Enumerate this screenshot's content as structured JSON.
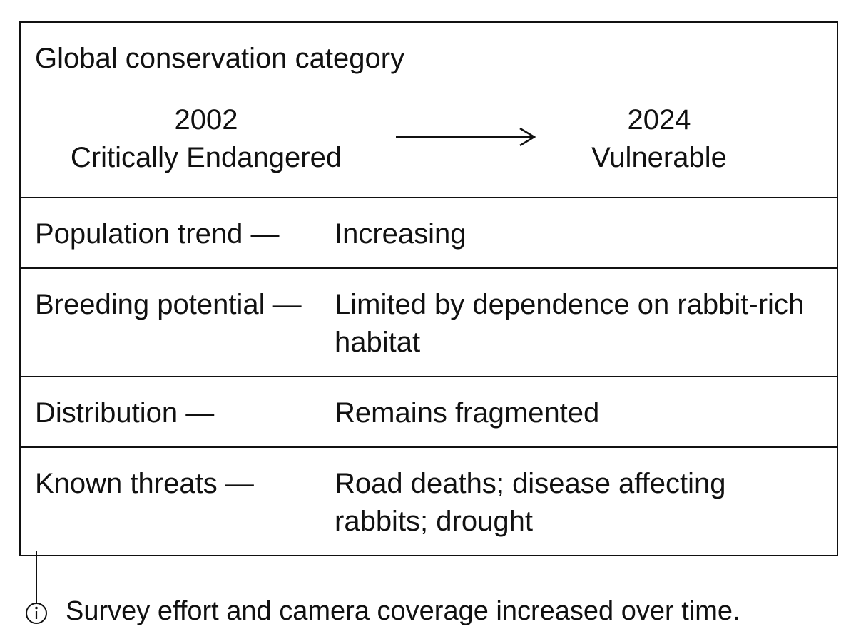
{
  "header": {
    "title": "Global conservation category",
    "from": {
      "year": 2002,
      "status": "Critically Endangered"
    },
    "to": {
      "year": 2024,
      "status": "Vulnerable"
    }
  },
  "rows": [
    {
      "label": "Population trend —",
      "value": "Increasing"
    },
    {
      "label": "Breeding potential —",
      "value": "Limited by dependence on rabbit-rich habitat"
    },
    {
      "label": "Distribution —",
      "value": "Remains fragmented"
    },
    {
      "label": "Known threats —",
      "value": "Road deaths; disease affecting rabbits; drought"
    }
  ],
  "note": "Survey effort and camera coverage increased over time."
}
